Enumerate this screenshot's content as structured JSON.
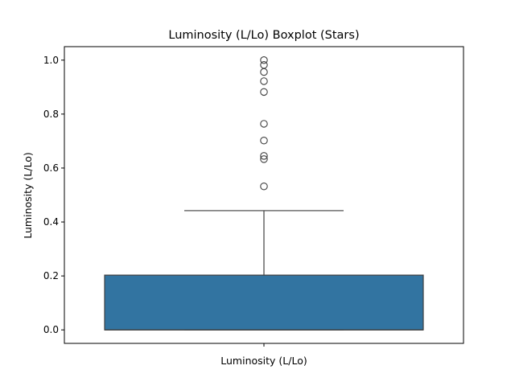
{
  "chart_data": {
    "type": "boxplot",
    "title": "Luminosity (L/Lo) Boxplot (Stars)",
    "xlabel": "Luminosity (L/Lo)",
    "ylabel": "Luminosity (L/Lo)",
    "category": "Luminosity (L/Lo)",
    "ylim": [
      -0.05,
      1.05
    ],
    "yticks": [
      "0.0",
      "0.2",
      "0.4",
      "0.6",
      "0.8",
      "1.0"
    ],
    "grid": false,
    "box": {
      "whisker_low": 0.0,
      "q1": 0.0,
      "median": 0.0,
      "q3": 0.203,
      "whisker_high": 0.442
    },
    "outliers": [
      0.532,
      0.633,
      0.645,
      0.702,
      0.764,
      0.882,
      0.922,
      0.956,
      0.982,
      1.0
    ],
    "colors": {
      "box": "#3274a1",
      "edge": "#3f3f3f"
    }
  }
}
